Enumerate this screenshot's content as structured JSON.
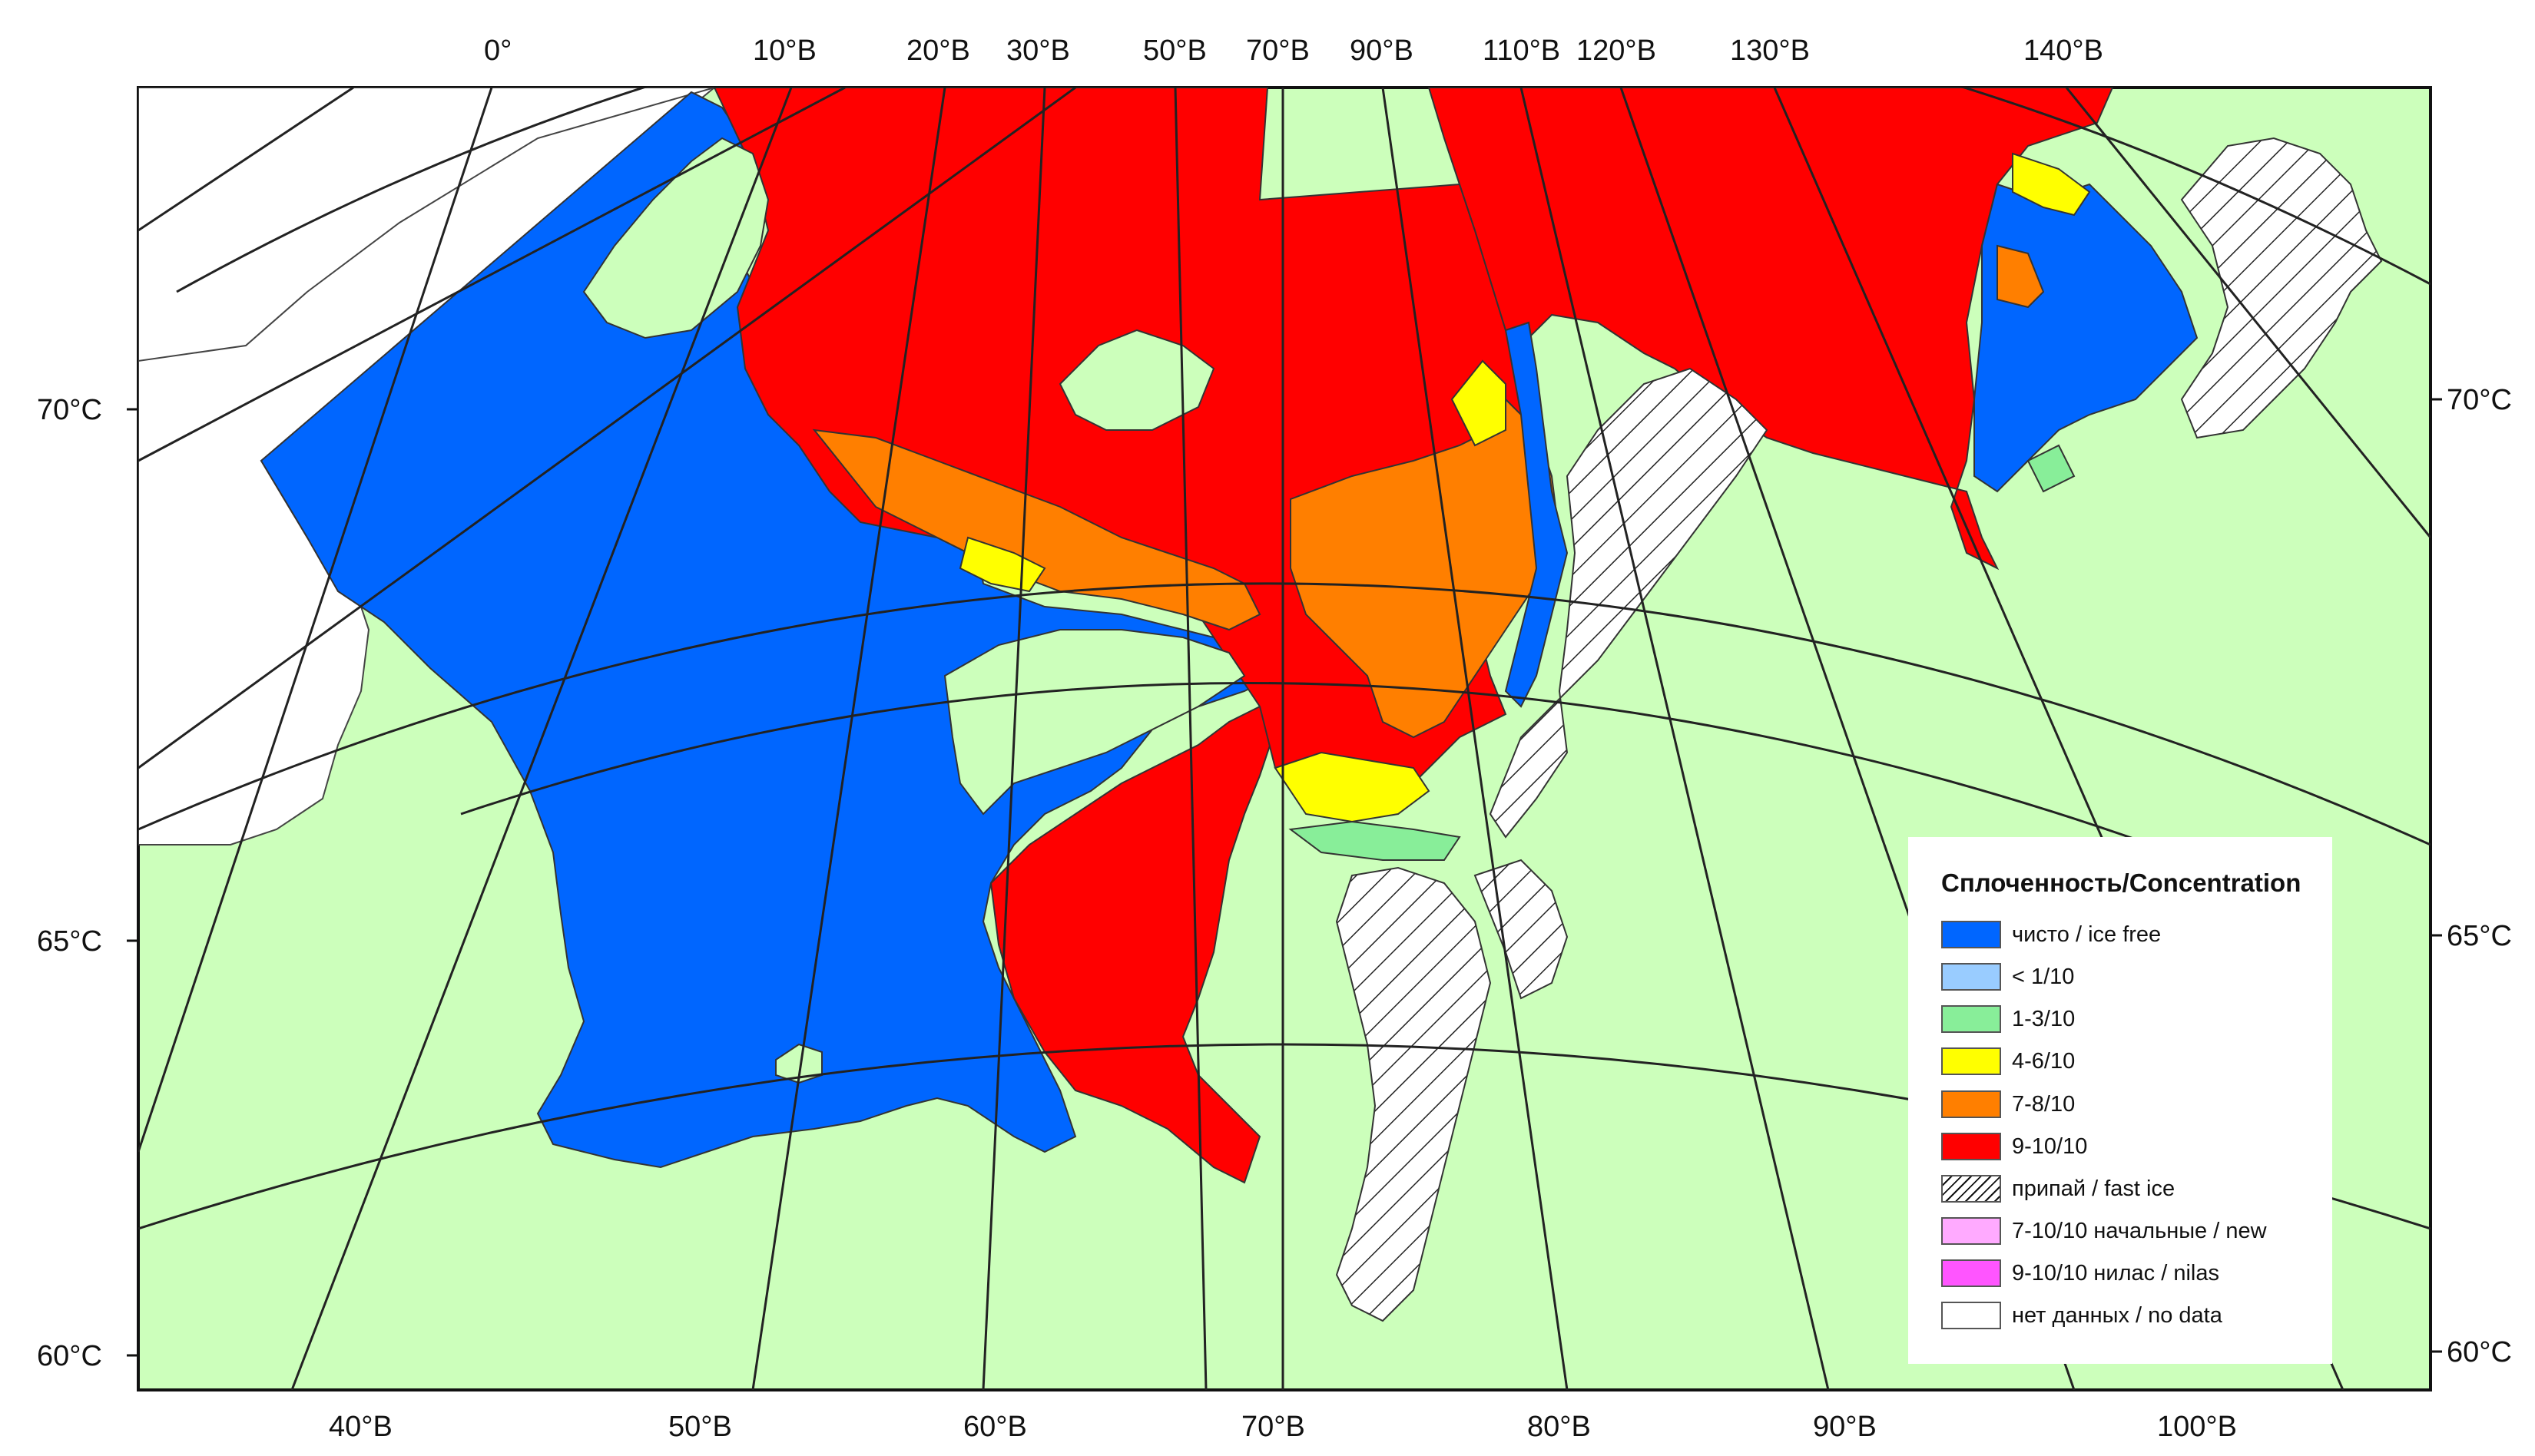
{
  "map": {
    "top_longitude_labels": [
      "0°",
      "10°В",
      "20°В",
      "30°В",
      "50°В",
      "70°В",
      "90°В",
      "110°В",
      "120°В",
      "130°В",
      "140°В"
    ],
    "bottom_longitude_labels": [
      "40°В",
      "50°В",
      "60°В",
      "70°В",
      "80°В",
      "90°В",
      "100°В"
    ],
    "left_latitude_labels": [
      "70°С",
      "65°С",
      "60°С"
    ],
    "right_latitude_labels": [
      "70°С",
      "65°С",
      "60°С"
    ],
    "colors": {
      "land": "#ccffbb",
      "coast": "#444444",
      "grid": "#222222",
      "ice_free": "#0066ff",
      "lt_1": "#99ccff",
      "c1_3": "#88ee99",
      "c4_6": "#ffff00",
      "c7_8": "#ff7f00",
      "c9_10": "#ff0000",
      "new_ice": "#ffaaff",
      "nilas": "#ff55ff",
      "no_data": "#ffffff"
    }
  },
  "legend": {
    "title": "Сплоченность/Concentration",
    "items": [
      {
        "label": "чисто / ice free",
        "color": "#0066ff",
        "icon": "ice-free-swatch"
      },
      {
        "label": "< 1/10",
        "color": "#99ccff",
        "icon": "lt-1-10-swatch"
      },
      {
        "label": "1-3/10",
        "color": "#88ee99",
        "icon": "1-3-10-swatch"
      },
      {
        "label": "4-6/10",
        "color": "#ffff00",
        "icon": "4-6-10-swatch"
      },
      {
        "label": "7-8/10",
        "color": "#ff7f00",
        "icon": "7-8-10-swatch"
      },
      {
        "label": "9-10/10",
        "color": "#ff0000",
        "icon": "9-10-10-swatch"
      },
      {
        "label": "припай / fast ice",
        "color": "hatch",
        "icon": "fast-ice-swatch"
      },
      {
        "label": "7-10/10 начальные / new",
        "color": "#ffaaff",
        "icon": "new-ice-swatch"
      },
      {
        "label": "9-10/10 нилас / nilas",
        "color": "#ff55ff",
        "icon": "nilas-swatch"
      },
      {
        "label": "нет данных / no data",
        "color": "#ffffff",
        "icon": "no-data-swatch"
      }
    ]
  }
}
